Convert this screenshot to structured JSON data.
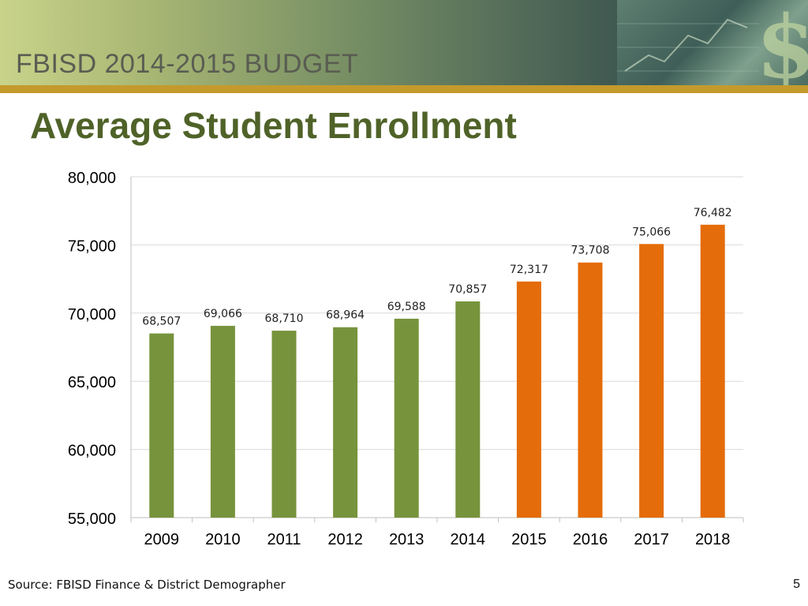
{
  "banner": {
    "title": "FBISD 2014-2015 BUDGET"
  },
  "slide": {
    "title": "Average Student Enrollment",
    "page_number": "5"
  },
  "footer": {
    "source": "Source: FBISD Finance  & District Demographer"
  },
  "colors": {
    "historical": "#77933c",
    "projected": "#e46c0a",
    "title": "#4f6228",
    "accent_bar": "#c49a2c"
  },
  "chart_data": {
    "type": "bar",
    "title": "",
    "xlabel": "",
    "ylabel": "",
    "categories": [
      "2009",
      "2010",
      "2011",
      "2012",
      "2013",
      "2014",
      "2015",
      "2016",
      "2017",
      "2018"
    ],
    "values": [
      68507,
      69066,
      68710,
      68964,
      69588,
      70857,
      72317,
      73708,
      75066,
      76482
    ],
    "value_labels": [
      "68,507",
      "69,066",
      "68,710",
      "68,964",
      "69,588",
      "70,857",
      "72,317",
      "73,708",
      "75,066",
      "76,482"
    ],
    "bar_colors": [
      "#77933c",
      "#77933c",
      "#77933c",
      "#77933c",
      "#77933c",
      "#77933c",
      "#e46c0a",
      "#e46c0a",
      "#e46c0a",
      "#e46c0a"
    ],
    "ylim": [
      55000,
      80000
    ],
    "yticks": [
      55000,
      60000,
      65000,
      70000,
      75000,
      80000
    ],
    "ytick_labels": [
      "55,000",
      "60,000",
      "65,000",
      "70,000",
      "75,000",
      "80,000"
    ],
    "grid": true,
    "legend": "none"
  }
}
